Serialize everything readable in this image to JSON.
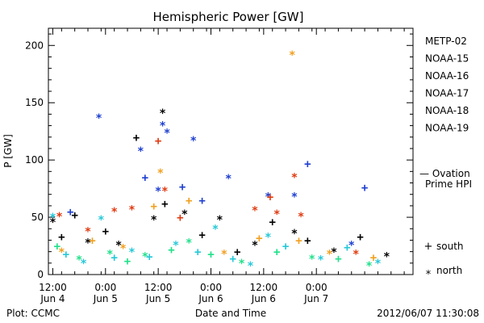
{
  "chart_data": {
    "type": "scatter",
    "title": "Hemispheric Power [GW]",
    "ylabel": "P [GW]",
    "xlabel": "Date and Time",
    "ylim": [
      0,
      215
    ],
    "y_ticks": [
      0,
      50,
      100,
      150,
      200
    ],
    "xlim": [
      "2012-06-04 11:00",
      "2012-06-07 22:00"
    ],
    "x_ticks": [
      {
        "t": "2012-06-04 12:00",
        "line1": "12:00",
        "line2": "Jun 4"
      },
      {
        "t": "2012-06-05 00:00",
        "line1": "0:00",
        "line2": "Jun 5"
      },
      {
        "t": "2012-06-05 12:00",
        "line1": "12:00",
        "line2": "Jun 5"
      },
      {
        "t": "2012-06-06 00:00",
        "line1": "0:00",
        "line2": "Jun 6"
      },
      {
        "t": "2012-06-06 12:00",
        "line1": "12:00",
        "line2": "Jun 6"
      },
      {
        "t": "2012-06-07 00:00",
        "line1": "0:00",
        "line2": "Jun 7"
      }
    ],
    "legend": [
      {
        "name": "METP-02",
        "color": "#000000"
      },
      {
        "name": "NOAA-15",
        "color": "#1e3fd0"
      },
      {
        "name": "NOAA-16",
        "color": "#25c8d8"
      },
      {
        "name": "NOAA-17",
        "color": "#20e08a"
      },
      {
        "name": "NOAA-18",
        "color": "#f0a020"
      },
      {
        "name": "NOAA-19",
        "color": "#e03a10"
      }
    ],
    "ovation_label": [
      "— Ovation",
      "Prime HPI"
    ],
    "ovation_color": "#1e3fd0",
    "marker_legend": [
      {
        "symbol": "+",
        "label": "south"
      },
      {
        "symbol": "*",
        "label": "north"
      }
    ],
    "series": [
      {
        "name": "METP-02",
        "color": "#000000",
        "points": [
          {
            "t": "2012-06-04 12:00",
            "y": 48,
            "m": "*"
          },
          {
            "t": "2012-06-04 14:00",
            "y": 33,
            "m": "+"
          },
          {
            "t": "2012-06-04 17:00",
            "y": 52,
            "m": "+"
          },
          {
            "t": "2012-06-04 20:00",
            "y": 30,
            "m": "*"
          },
          {
            "t": "2012-06-05 00:00",
            "y": 38,
            "m": "+"
          },
          {
            "t": "2012-06-05 03:00",
            "y": 28,
            "m": "*"
          },
          {
            "t": "2012-06-05 07:00",
            "y": 120,
            "m": "+"
          },
          {
            "t": "2012-06-05 11:00",
            "y": 50,
            "m": "*"
          },
          {
            "t": "2012-06-05 13:00",
            "y": 143,
            "m": "*"
          },
          {
            "t": "2012-06-05 13:30",
            "y": 62,
            "m": "+"
          },
          {
            "t": "2012-06-05 18:00",
            "y": 55,
            "m": "*"
          },
          {
            "t": "2012-06-05 22:00",
            "y": 35,
            "m": "+"
          },
          {
            "t": "2012-06-06 02:00",
            "y": 50,
            "m": "*"
          },
          {
            "t": "2012-06-06 06:00",
            "y": 20,
            "m": "+"
          },
          {
            "t": "2012-06-06 10:00",
            "y": 28,
            "m": "*"
          },
          {
            "t": "2012-06-06 14:00",
            "y": 46,
            "m": "+"
          },
          {
            "t": "2012-06-06 19:00",
            "y": 38,
            "m": "*"
          },
          {
            "t": "2012-06-06 22:00",
            "y": 30,
            "m": "+"
          },
          {
            "t": "2012-06-07 04:00",
            "y": 22,
            "m": "*"
          },
          {
            "t": "2012-06-07 10:00",
            "y": 33,
            "m": "+"
          },
          {
            "t": "2012-06-07 16:00",
            "y": 18,
            "m": "*"
          }
        ]
      },
      {
        "name": "NOAA-15",
        "color": "#1e3fd0",
        "points": [
          {
            "t": "2012-06-04 16:00",
            "y": 55,
            "m": "+"
          },
          {
            "t": "2012-06-04 22:30",
            "y": 139,
            "m": "*"
          },
          {
            "t": "2012-06-05 08:00",
            "y": 110,
            "m": "*"
          },
          {
            "t": "2012-06-05 09:00",
            "y": 85,
            "m": "+"
          },
          {
            "t": "2012-06-05 12:00",
            "y": 75,
            "m": "*"
          },
          {
            "t": "2012-06-05 13:00",
            "y": 132,
            "m": "*"
          },
          {
            "t": "2012-06-05 14:00",
            "y": 126,
            "m": "*"
          },
          {
            "t": "2012-06-05 17:30",
            "y": 77,
            "m": "+"
          },
          {
            "t": "2012-06-05 20:00",
            "y": 119,
            "m": "*"
          },
          {
            "t": "2012-06-05 22:00",
            "y": 65,
            "m": "+"
          },
          {
            "t": "2012-06-06 04:00",
            "y": 86,
            "m": "*"
          },
          {
            "t": "2012-06-06 13:00",
            "y": 70,
            "m": "*"
          },
          {
            "t": "2012-06-06 19:00",
            "y": 70,
            "m": "*"
          },
          {
            "t": "2012-06-06 22:00",
            "y": 97,
            "m": "+"
          },
          {
            "t": "2012-06-07 11:00",
            "y": 76,
            "m": "+"
          },
          {
            "t": "2012-06-07 08:00",
            "y": 28,
            "m": "*"
          }
        ]
      },
      {
        "name": "NOAA-16",
        "color": "#25c8d8",
        "points": [
          {
            "t": "2012-06-04 12:00",
            "y": 52,
            "m": "*"
          },
          {
            "t": "2012-06-04 15:00",
            "y": 18,
            "m": "+"
          },
          {
            "t": "2012-06-04 19:00",
            "y": 12,
            "m": "*"
          },
          {
            "t": "2012-06-04 23:00",
            "y": 50,
            "m": "*"
          },
          {
            "t": "2012-06-05 02:00",
            "y": 15,
            "m": "+"
          },
          {
            "t": "2012-06-05 06:00",
            "y": 22,
            "m": "*"
          },
          {
            "t": "2012-06-05 10:00",
            "y": 16,
            "m": "+"
          },
          {
            "t": "2012-06-05 16:00",
            "y": 28,
            "m": "*"
          },
          {
            "t": "2012-06-05 21:00",
            "y": 20,
            "m": "+"
          },
          {
            "t": "2012-06-06 01:00",
            "y": 42,
            "m": "*"
          },
          {
            "t": "2012-06-06 05:00",
            "y": 14,
            "m": "+"
          },
          {
            "t": "2012-06-06 09:00",
            "y": 10,
            "m": "*"
          },
          {
            "t": "2012-06-06 13:00",
            "y": 35,
            "m": "*"
          },
          {
            "t": "2012-06-06 17:00",
            "y": 25,
            "m": "+"
          },
          {
            "t": "2012-06-07 01:00",
            "y": 15,
            "m": "*"
          },
          {
            "t": "2012-06-07 07:00",
            "y": 24,
            "m": "+"
          },
          {
            "t": "2012-06-07 14:00",
            "y": 12,
            "m": "*"
          }
        ]
      },
      {
        "name": "NOAA-17",
        "color": "#20e08a",
        "points": [
          {
            "t": "2012-06-04 13:00",
            "y": 25,
            "m": "+"
          },
          {
            "t": "2012-06-04 18:00",
            "y": 15,
            "m": "*"
          },
          {
            "t": "2012-06-05 01:00",
            "y": 20,
            "m": "*"
          },
          {
            "t": "2012-06-05 05:00",
            "y": 12,
            "m": "+"
          },
          {
            "t": "2012-06-05 09:00",
            "y": 18,
            "m": "*"
          },
          {
            "t": "2012-06-05 15:00",
            "y": 22,
            "m": "+"
          },
          {
            "t": "2012-06-05 19:00",
            "y": 30,
            "m": "*"
          },
          {
            "t": "2012-06-06 00:00",
            "y": 18,
            "m": "+"
          },
          {
            "t": "2012-06-06 07:00",
            "y": 12,
            "m": "*"
          },
          {
            "t": "2012-06-06 15:00",
            "y": 20,
            "m": "+"
          },
          {
            "t": "2012-06-06 23:00",
            "y": 16,
            "m": "*"
          },
          {
            "t": "2012-06-07 05:00",
            "y": 14,
            "m": "+"
          },
          {
            "t": "2012-06-07 12:00",
            "y": 10,
            "m": "*"
          }
        ]
      },
      {
        "name": "NOAA-18",
        "color": "#f0a020",
        "points": [
          {
            "t": "2012-06-04 14:00",
            "y": 22,
            "m": "*"
          },
          {
            "t": "2012-06-04 21:00",
            "y": 30,
            "m": "+"
          },
          {
            "t": "2012-06-05 04:00",
            "y": 25,
            "m": "*"
          },
          {
            "t": "2012-06-05 11:00",
            "y": 60,
            "m": "+"
          },
          {
            "t": "2012-06-05 12:30",
            "y": 91,
            "m": "*"
          },
          {
            "t": "2012-06-05 19:00",
            "y": 65,
            "m": "+"
          },
          {
            "t": "2012-06-06 03:00",
            "y": 20,
            "m": "*"
          },
          {
            "t": "2012-06-06 11:00",
            "y": 32,
            "m": "+"
          },
          {
            "t": "2012-06-06 18:30",
            "y": 194,
            "m": "*"
          },
          {
            "t": "2012-06-06 20:00",
            "y": 30,
            "m": "+"
          },
          {
            "t": "2012-06-07 03:00",
            "y": 20,
            "m": "*"
          },
          {
            "t": "2012-06-07 13:00",
            "y": 15,
            "m": "+"
          }
        ]
      },
      {
        "name": "NOAA-19",
        "color": "#e03a10",
        "points": [
          {
            "t": "2012-06-04 13:30",
            "y": 53,
            "m": "*"
          },
          {
            "t": "2012-06-04 20:00",
            "y": 40,
            "m": "*"
          },
          {
            "t": "2012-06-05 02:00",
            "y": 57,
            "m": "*"
          },
          {
            "t": "2012-06-05 06:00",
            "y": 59,
            "m": "*"
          },
          {
            "t": "2012-06-05 12:00",
            "y": 117,
            "m": "+"
          },
          {
            "t": "2012-06-05 13:30",
            "y": 75,
            "m": "*"
          },
          {
            "t": "2012-06-05 17:00",
            "y": 50,
            "m": "+"
          },
          {
            "t": "2012-06-06 10:00",
            "y": 58,
            "m": "*"
          },
          {
            "t": "2012-06-06 13:30",
            "y": 68,
            "m": "+"
          },
          {
            "t": "2012-06-06 15:00",
            "y": 55,
            "m": "*"
          },
          {
            "t": "2012-06-06 19:00",
            "y": 87,
            "m": "*"
          },
          {
            "t": "2012-06-06 20:30",
            "y": 53,
            "m": "*"
          },
          {
            "t": "2012-06-07 09:00",
            "y": 20,
            "m": "*"
          }
        ]
      }
    ]
  },
  "footer": {
    "left": "Plot: CCMC",
    "right": "2012/06/07 11:30:08"
  }
}
